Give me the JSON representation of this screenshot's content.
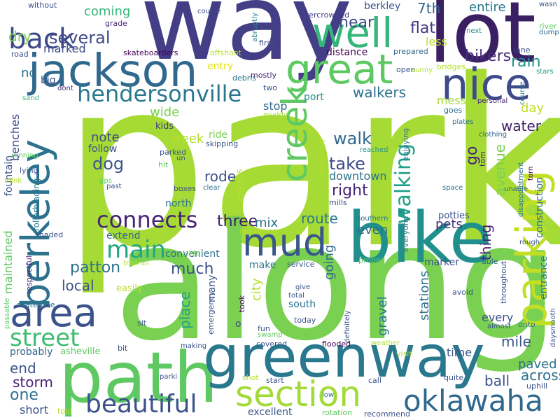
{
  "palette": {
    "purple": "#3b1f63",
    "indigo": "#433e85",
    "blue": "#31688e",
    "teal": "#21908d",
    "green": "#35b779",
    "lime": "#8fd744",
    "yellow": "#b5de2b"
  },
  "words": [
    {
      "text": "park",
      "color": "#a6db35"
    },
    {
      "text": "along",
      "color": "#7ad151"
    },
    {
      "text": "way",
      "color": "#433e85"
    },
    {
      "text": "lot",
      "color": "#3b1f63"
    },
    {
      "text": "bike",
      "color": "#21908d"
    },
    {
      "text": "path",
      "color": "#5ec962"
    },
    {
      "text": "greenway",
      "color": "#2a788e"
    },
    {
      "text": "parking",
      "color": "#c2df23"
    },
    {
      "text": "jackson",
      "color": "#31688e"
    },
    {
      "text": "well",
      "color": "#35b779"
    },
    {
      "text": "great",
      "color": "#5ec962"
    },
    {
      "text": "nice",
      "color": "#3e4a89"
    },
    {
      "text": "berkeley",
      "color": "#2c728e"
    },
    {
      "text": "area",
      "color": "#3b528b"
    },
    {
      "text": "creek",
      "color": "#5ec962"
    },
    {
      "text": "mud",
      "color": "#39568c"
    },
    {
      "text": "section",
      "color": "#a2da37"
    },
    {
      "text": "oklawaha",
      "color": "#31688e"
    },
    {
      "text": "back",
      "color": "#3e4989"
    },
    {
      "text": "hendersonville",
      "color": "#2a788e"
    },
    {
      "text": "beautiful",
      "color": "#3b528b"
    },
    {
      "text": "connects",
      "color": "#482475"
    },
    {
      "text": "main",
      "color": "#22a785"
    },
    {
      "text": "street",
      "color": "#3fbc73"
    },
    {
      "text": "walking",
      "color": "#1fa088"
    },
    {
      "text": "several",
      "color": "#3e4a89"
    },
    {
      "text": "coming",
      "color": "#35b779"
    },
    {
      "text": "entire",
      "color": "#2a788e"
    },
    {
      "text": "berkley",
      "color": "#3b528b"
    },
    {
      "text": "7th",
      "color": "#31688e"
    },
    {
      "text": "near",
      "color": "#3e4989"
    },
    {
      "text": "flat",
      "color": "#443983"
    },
    {
      "text": "less",
      "color": "#b5de2b"
    },
    {
      "text": "bikers",
      "color": "#472d7b"
    },
    {
      "text": "rain",
      "color": "#21918c"
    },
    {
      "text": "walkers",
      "color": "#2c728e"
    },
    {
      "text": "dry",
      "color": "#7ad151"
    },
    {
      "text": "marked",
      "color": "#3e4989"
    },
    {
      "text": "skateboarders",
      "color": "#440154"
    },
    {
      "text": "offshoot",
      "color": "#b5de2b"
    },
    {
      "text": "entry",
      "color": "#e5e419"
    },
    {
      "text": "distance",
      "color": "#440154"
    },
    {
      "text": "prepared",
      "color": "#31688e"
    },
    {
      "text": "lane",
      "color": "#3b528b"
    },
    {
      "text": "river",
      "color": "#5ec962"
    },
    {
      "text": "dump",
      "color": "#31688e"
    },
    {
      "text": "stars",
      "color": "#1f9e89"
    },
    {
      "text": "nc",
      "color": "#2c728e"
    },
    {
      "text": "road",
      "color": "#3b528b"
    },
    {
      "text": "grade",
      "color": "#482878"
    },
    {
      "text": "without",
      "color": "#3b528b"
    },
    {
      "text": "couple",
      "color": "#3e4989"
    },
    {
      "text": "abruptly",
      "color": "#26828e"
    },
    {
      "text": "overcrowded",
      "color": "#433e85"
    },
    {
      "text": "first",
      "color": "#3b528b"
    },
    {
      "text": "mostly",
      "color": "#482475"
    },
    {
      "text": "debris",
      "color": "#2c728e"
    },
    {
      "text": "two",
      "color": "#38588c"
    },
    {
      "text": "port",
      "color": "#21918c"
    },
    {
      "text": "open",
      "color": "#39568c"
    },
    {
      "text": "bridges",
      "color": "#b5de2b"
    },
    {
      "text": "next",
      "color": "#21918c"
    },
    {
      "text": "wasn",
      "color": "#3b528b"
    },
    {
      "text": "big",
      "color": "#3b528b"
    },
    {
      "text": "dont",
      "color": "#482878"
    },
    {
      "text": "sand",
      "color": "#38b977"
    },
    {
      "text": "benches",
      "color": "#3e4a89"
    },
    {
      "text": "stop",
      "color": "#31688e"
    },
    {
      "text": "mess",
      "color": "#a2da37"
    },
    {
      "text": "day",
      "color": "#c2df23"
    },
    {
      "text": "goes",
      "color": "#2c728e"
    },
    {
      "text": "personal",
      "color": "#482878"
    },
    {
      "text": "course",
      "color": "#2a788e"
    },
    {
      "text": "sunny",
      "color": "#b5de2b"
    },
    {
      "text": "wide",
      "color": "#7ad151"
    },
    {
      "text": "kids",
      "color": "#433e85"
    },
    {
      "text": "muddy",
      "color": "#a5db36"
    },
    {
      "text": "fountain",
      "color": "#3b528b"
    },
    {
      "text": "week",
      "color": "#b5de2b"
    },
    {
      "text": "ride",
      "color": "#7ad151"
    },
    {
      "text": "skipping",
      "color": "#3b528b"
    },
    {
      "text": "water",
      "color": "#3b1f63"
    },
    {
      "text": "plates",
      "color": "#2c728e"
    },
    {
      "text": "clothing",
      "color": "#31688e"
    },
    {
      "text": "note",
      "color": "#3e4a89"
    },
    {
      "text": "follow",
      "color": "#3b528b"
    },
    {
      "text": "dog",
      "color": "#3b528b"
    },
    {
      "text": "walk",
      "color": "#31688e"
    },
    {
      "text": "go",
      "color": "#482475"
    },
    {
      "text": "enjoying",
      "color": "#2c728e"
    },
    {
      "text": "reached",
      "color": "#21918c"
    },
    {
      "text": "tom",
      "color": "#482475"
    },
    {
      "text": "running",
      "color": "#5ec962"
    },
    {
      "text": "parked",
      "color": "#3b528b"
    },
    {
      "text": "un",
      "color": "#3b528b"
    },
    {
      "text": "hit",
      "color": "#5ec962"
    },
    {
      "text": "take",
      "color": "#3e4a89"
    },
    {
      "text": "absolutely",
      "color": "#b5de2b"
    },
    {
      "text": "downtown",
      "color": "#2c728e"
    },
    {
      "text": "avenue",
      "color": "#7ad151"
    },
    {
      "text": "construction",
      "color": "#2c728e"
    },
    {
      "text": "lying",
      "color": "#3b528b"
    },
    {
      "text": "think",
      "color": "#b5de2b"
    },
    {
      "text": "rollerblading",
      "color": "#2a788e"
    },
    {
      "text": "gps",
      "color": "#5ec962"
    },
    {
      "text": "past",
      "color": "#3b528b"
    },
    {
      "text": "rode",
      "color": "#3b528b"
    },
    {
      "text": "right",
      "color": "#482475"
    },
    {
      "text": "perhaps",
      "color": "#b5de2b"
    },
    {
      "text": "space",
      "color": "#2c728e"
    },
    {
      "text": "unable",
      "color": "#31688e"
    },
    {
      "text": "disappointment",
      "color": "#2c728e"
    },
    {
      "text": "mills",
      "color": "#3b528b"
    },
    {
      "text": "torn",
      "color": "#440154"
    },
    {
      "text": "boxes",
      "color": "#3b528b"
    },
    {
      "text": "clear",
      "color": "#2c728e"
    },
    {
      "text": "north",
      "color": "#2c728e"
    },
    {
      "text": "three",
      "color": "#3b1f63"
    },
    {
      "text": "even",
      "color": "#31688e"
    },
    {
      "text": "pets",
      "color": "#472d7b"
    },
    {
      "text": "potties",
      "color": "#3b528b"
    },
    {
      "text": "maintained",
      "color": "#5ec962"
    },
    {
      "text": "extend",
      "color": "#31688e"
    },
    {
      "text": "mix",
      "color": "#2c728e"
    },
    {
      "text": "route",
      "color": "#2a788e"
    },
    {
      "text": "southern",
      "color": "#2c728e"
    },
    {
      "text": "mountains",
      "color": "#b5de2b"
    },
    {
      "text": "everyone",
      "color": "#2c728e"
    },
    {
      "text": "thing",
      "color": "#482475"
    },
    {
      "text": "rough",
      "color": "#3b528b"
    },
    {
      "text": "shaded",
      "color": "#3b528b"
    },
    {
      "text": "convenient",
      "color": "#2c728e"
    },
    {
      "text": "going",
      "color": "#31688e"
    },
    {
      "text": "respectful",
      "color": "#482475"
    },
    {
      "text": "patton",
      "color": "#2c728e"
    },
    {
      "text": "much",
      "color": "#3b528b"
    },
    {
      "text": "side",
      "color": "#7ad151"
    },
    {
      "text": "make",
      "color": "#2a788e"
    },
    {
      "text": "service",
      "color": "#3b528b"
    },
    {
      "text": "proper",
      "color": "#5ec962"
    },
    {
      "text": "marker",
      "color": "#3b528b"
    },
    {
      "text": "able",
      "color": "#31688e"
    },
    {
      "text": "entrance",
      "color": "#2c728e"
    },
    {
      "text": "traitrail",
      "color": "#b5de2b"
    },
    {
      "text": "city",
      "color": "#b5de2b"
    },
    {
      "text": "throughout",
      "color": "#3b528b"
    },
    {
      "text": "local",
      "color": "#3b528b"
    },
    {
      "text": "easily",
      "color": "#b5de2b"
    },
    {
      "text": "place",
      "color": "#1fa088"
    },
    {
      "text": "many",
      "color": "#3b528b"
    },
    {
      "text": "skaterode",
      "color": "#2c728e"
    },
    {
      "text": "passable",
      "color": "#5ec962"
    },
    {
      "text": "took",
      "color": "#440154"
    },
    {
      "text": "give",
      "color": "#3b528b"
    },
    {
      "text": "total",
      "color": "#3b528b"
    },
    {
      "text": "avoid",
      "color": "#3b528b"
    },
    {
      "text": "stations",
      "color": "#2c728e"
    },
    {
      "text": "emergency",
      "color": "#3b528b"
    },
    {
      "text": "o",
      "color": "#3b528b"
    },
    {
      "text": "south",
      "color": "#2c728e"
    },
    {
      "text": "gravel",
      "color": "#2a788e"
    },
    {
      "text": "definitely",
      "color": "#3b528b"
    },
    {
      "text": "every",
      "color": "#3b528b"
    },
    {
      "text": "almost",
      "color": "#3b528b"
    },
    {
      "text": "daysmooth",
      "color": "#3b528b"
    },
    {
      "text": "sit",
      "color": "#3b528b"
    },
    {
      "text": "swamp",
      "color": "#5ec962"
    },
    {
      "text": "today",
      "color": "#3b528b"
    },
    {
      "text": "onto",
      "color": "#2c728e"
    },
    {
      "text": "fun",
      "color": "#3b528b"
    },
    {
      "text": "asheville",
      "color": "#5ec962"
    },
    {
      "text": "mile",
      "color": "#3b528b"
    },
    {
      "text": "probably",
      "color": "#31688e"
    },
    {
      "text": "bit",
      "color": "#3b528b"
    },
    {
      "text": "covered",
      "color": "#3b528b"
    },
    {
      "text": "making",
      "color": "#3b528b"
    },
    {
      "text": "flooded",
      "color": "#440154"
    },
    {
      "text": "weather",
      "color": "#b5de2b"
    },
    {
      "text": "time",
      "color": "#3b528b"
    },
    {
      "text": "visit",
      "color": "#b5de2b"
    },
    {
      "text": "paved",
      "color": "#2c728e"
    },
    {
      "text": "across",
      "color": "#2c728e"
    },
    {
      "text": "end",
      "color": "#3b528b"
    },
    {
      "text": "parki",
      "color": "#3b528b"
    },
    {
      "text": "shot",
      "color": "#b5de2b"
    },
    {
      "text": "start",
      "color": "#3b528b"
    },
    {
      "text": "call",
      "color": "#3b528b"
    },
    {
      "text": "quite",
      "color": "#3b528b"
    },
    {
      "text": "ball",
      "color": "#3b528b"
    },
    {
      "text": "uphill",
      "color": "#3b528b"
    },
    {
      "text": "storm",
      "color": "#482475"
    },
    {
      "text": "one",
      "color": "#2c728e"
    },
    {
      "text": "short",
      "color": "#3b528b"
    },
    {
      "text": "told",
      "color": "#b5de2b"
    },
    {
      "text": "excellent",
      "color": "#3b528b"
    },
    {
      "text": "low",
      "color": "#2c728e"
    },
    {
      "text": "rotation",
      "color": "#5ec962"
    },
    {
      "text": "recommend",
      "color": "#3b528b"
    }
  ]
}
